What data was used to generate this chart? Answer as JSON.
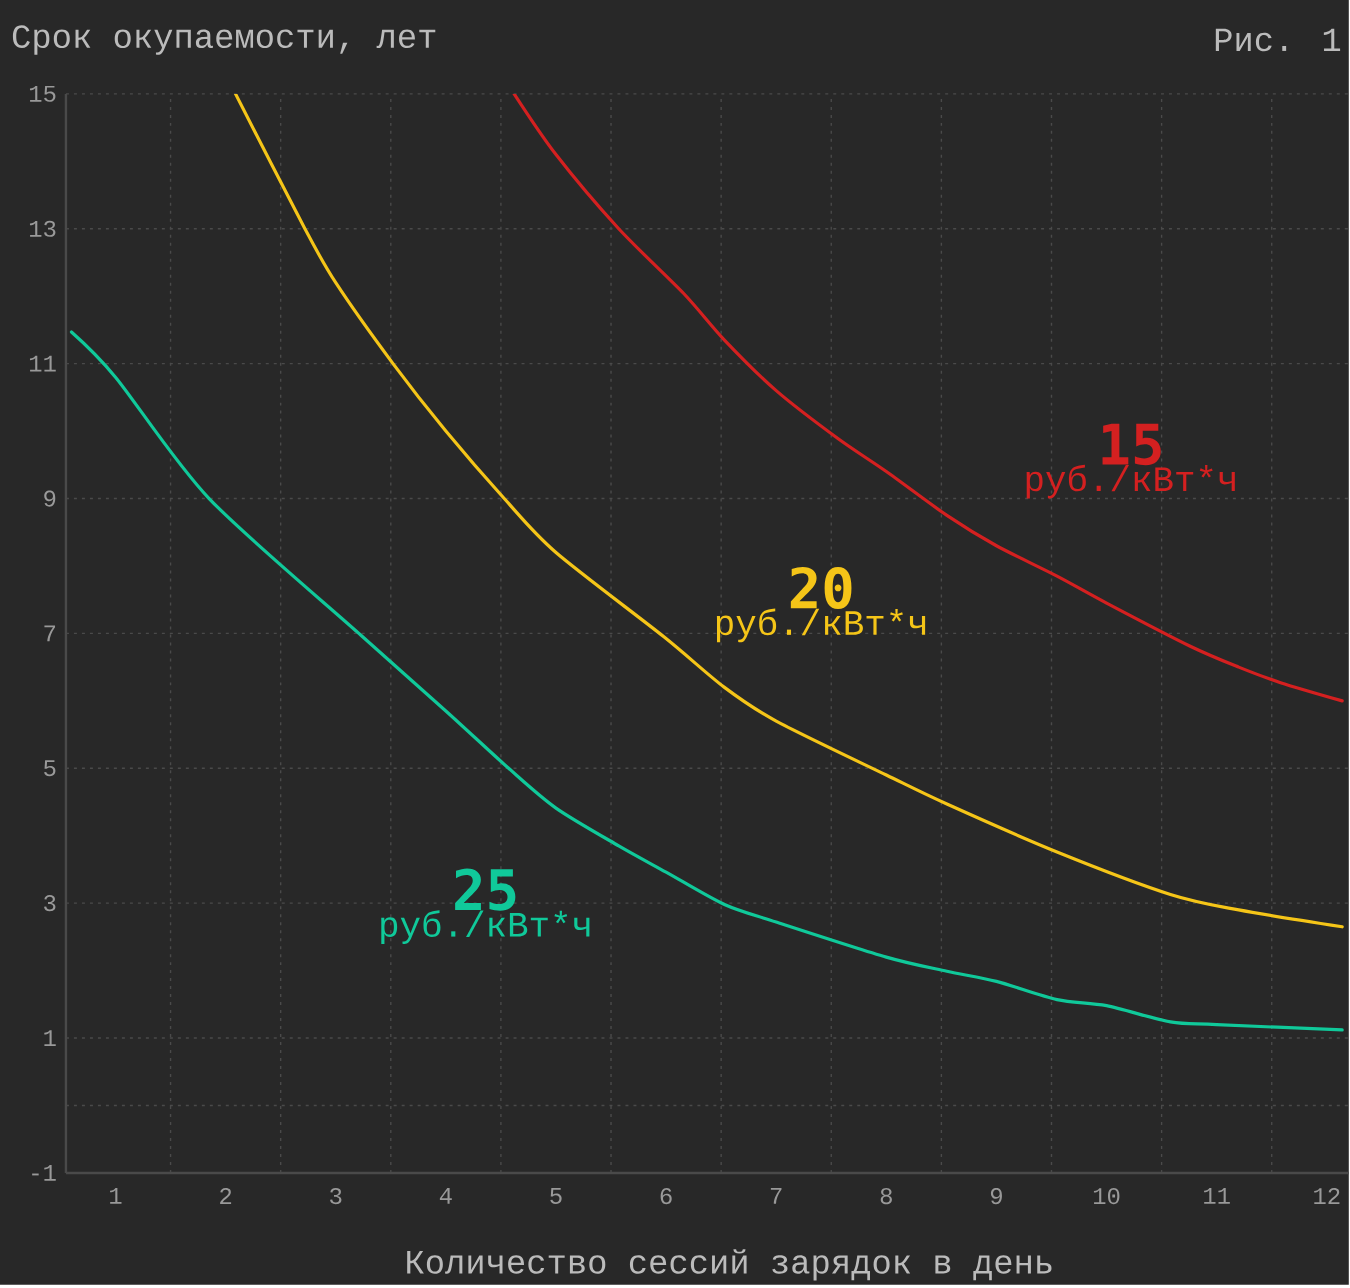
{
  "chart_data": {
    "type": "line",
    "ylabel": "Срок окупаемости, лет",
    "xlabel": "Количество сессий зарядок в день",
    "annotations": [
      "Рис. 1",
      "руб./кВт*ч",
      "руб./кВт*ч",
      "руб./кВт*ч"
    ],
    "xlim": [
      0.55,
      12.2
    ],
    "ylim": [
      -1,
      15
    ],
    "xticks": [
      1,
      2,
      3,
      4,
      5,
      6,
      7,
      8,
      9,
      10,
      11,
      12,
      {
        "value": 1.5,
        "label": null
      },
      {
        "value": 2.5,
        "label": null
      },
      {
        "value": 3.5,
        "label": null
      },
      {
        "value": 4.5,
        "label": null
      },
      {
        "value": 5.5,
        "label": null
      },
      {
        "value": 6.5,
        "label": null
      },
      {
        "value": 7.5,
        "label": null
      },
      {
        "value": 8.5,
        "label": null
      },
      {
        "value": 9.5,
        "label": null
      },
      {
        "value": 10.5,
        "label": null
      },
      {
        "value": 11.5,
        "label": null
      }
    ],
    "yticks": [
      -1,
      1,
      3,
      5,
      7,
      9,
      11,
      13,
      15,
      {
        "value": 0,
        "label": null
      }
    ],
    "grid": true,
    "legend": false,
    "marker": "none",
    "line_style": "solid",
    "series": [
      {
        "name": "15",
        "color": "#d42020",
        "x": [
          4.62,
          5.0,
          5.57,
          6.16,
          6.53,
          7.0,
          7.56,
          8.0,
          8.55,
          9.0,
          9.55,
          10.0,
          10.76,
          11.2,
          11.58,
          12.14
        ],
        "values": [
          15,
          14.1,
          13,
          12.04,
          11.35,
          10.6,
          9.89,
          9.4,
          8.75,
          8.3,
          7.85,
          7.45,
          6.81,
          6.5,
          6.27,
          6.0
        ]
      },
      {
        "name": "20",
        "color": "#f5c518",
        "x": [
          2.09,
          2.72,
          3.0,
          3.52,
          4.0,
          4.53,
          5.0,
          5.98,
          6.53,
          7.0,
          8.0,
          8.55,
          9.55,
          10.58,
          11.2,
          12.14
        ],
        "values": [
          15,
          13,
          12.2,
          11,
          10.0,
          9,
          8.2,
          6.95,
          6.2,
          5.7,
          4.9,
          4.47,
          3.76,
          3.13,
          2.9,
          2.65
        ]
      },
      {
        "name": "25",
        "color": "#10c99a",
        "x": [
          0.6,
          1.0,
          1.85,
          3.21,
          4.0,
          4.57,
          5.0,
          5.57,
          6.0,
          6.53,
          7.0,
          8.0,
          8.55,
          9.0,
          9.55,
          10.0,
          10.58,
          11.0,
          12.14
        ],
        "values": [
          11.47,
          10.8,
          9,
          7,
          5.85,
          5,
          4.41,
          3.85,
          3.46,
          2.98,
          2.72,
          2.2,
          1.99,
          1.84,
          1.57,
          1.48,
          1.24,
          1.2,
          1.12
        ]
      }
    ]
  }
}
